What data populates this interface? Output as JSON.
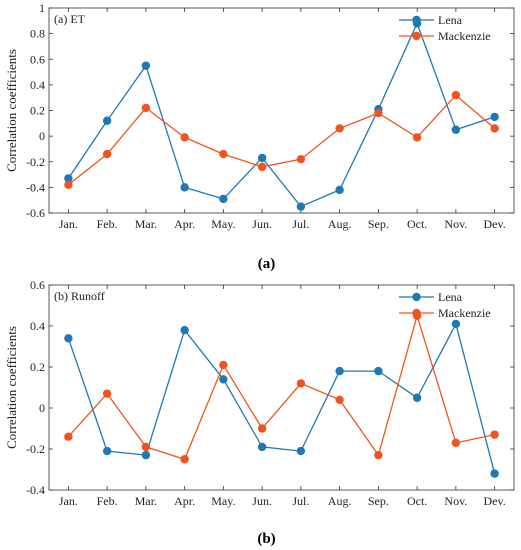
{
  "chart_data": [
    {
      "type": "line",
      "title": "(a) ET",
      "ylabel": "Correlation coefficients",
      "caption": "(a)",
      "categories": [
        "Jan.",
        "Feb.",
        "Mar.",
        "Apr.",
        "May.",
        "Jun.",
        "Jul.",
        "Aug.",
        "Sep.",
        "Oct.",
        "Nov.",
        "Dev."
      ],
      "ylim": [
        -0.6,
        1
      ],
      "yticks": [
        -0.6,
        -0.4,
        -0.2,
        0,
        0.2,
        0.4,
        0.6,
        0.8,
        1
      ],
      "ytick_labels": [
        "-0.6",
        "-0.4",
        "-0.2",
        "0",
        "0.2",
        "0.4",
        "0.6",
        "0.8",
        "1"
      ],
      "legend_position": "top-right",
      "grid": false,
      "series": [
        {
          "name": "Lena",
          "color": "#1f77b4",
          "values": [
            -0.33,
            0.12,
            0.55,
            -0.4,
            -0.49,
            -0.17,
            -0.55,
            -0.42,
            0.21,
            0.88,
            0.05,
            0.15
          ]
        },
        {
          "name": "Mackenzie",
          "color": "#f0541e",
          "values": [
            -0.38,
            -0.14,
            0.22,
            -0.01,
            -0.14,
            -0.24,
            -0.18,
            0.06,
            0.18,
            -0.01,
            0.32,
            0.06
          ]
        }
      ]
    },
    {
      "type": "line",
      "title": "(b) Runoff",
      "ylabel": "Correlation coefficients",
      "caption": "(b)",
      "categories": [
        "Jan.",
        "Feb.",
        "Mar.",
        "Apr.",
        "May.",
        "Jun.",
        "Jul.",
        "Aug.",
        "Sep.",
        "Oct.",
        "Nov.",
        "Dev."
      ],
      "ylim": [
        -0.4,
        0.6
      ],
      "yticks": [
        -0.4,
        -0.2,
        0,
        0.2,
        0.4,
        0.6
      ],
      "ytick_labels": [
        "-0.4",
        "-0.2",
        "0",
        "0.2",
        "0.4",
        "0.6"
      ],
      "legend_position": "top-right",
      "grid": false,
      "series": [
        {
          "name": "Lena",
          "color": "#1f77b4",
          "values": [
            0.34,
            -0.21,
            -0.23,
            0.38,
            0.14,
            -0.19,
            -0.21,
            0.18,
            0.18,
            0.05,
            0.41,
            -0.32
          ]
        },
        {
          "name": "Mackenzie",
          "color": "#f0541e",
          "values": [
            -0.14,
            0.07,
            -0.19,
            -0.25,
            0.21,
            -0.1,
            0.12,
            0.04,
            -0.23,
            0.45,
            -0.17,
            -0.13
          ]
        }
      ]
    }
  ]
}
